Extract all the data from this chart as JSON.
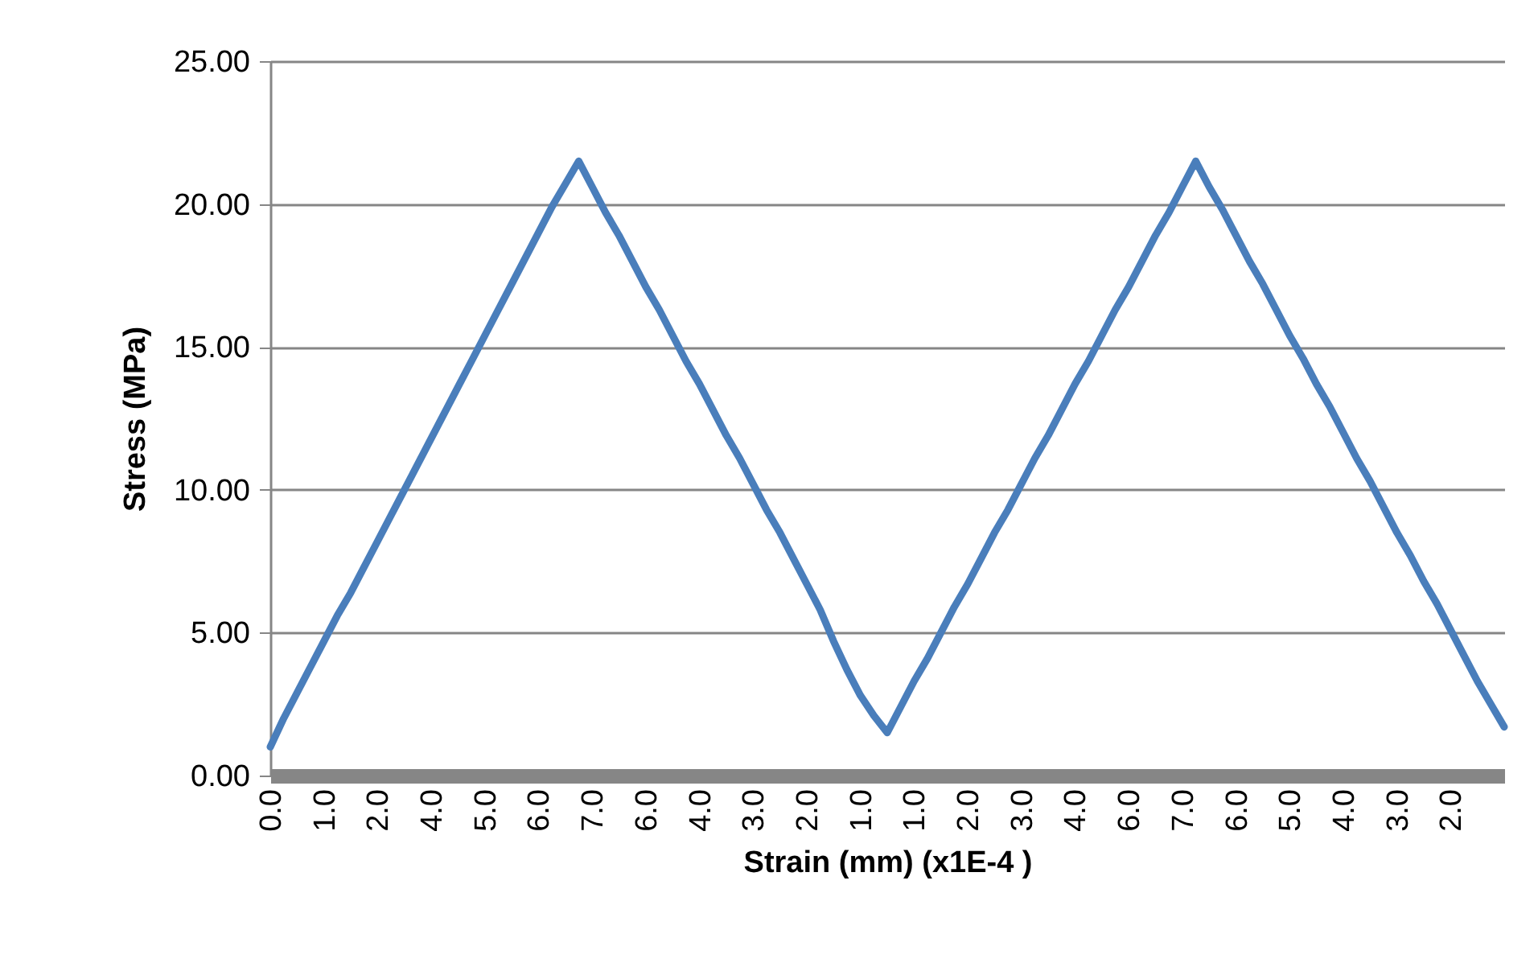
{
  "chart_data": {
    "type": "line",
    "xlabel": "Strain (mm) (x1E-4 )",
    "ylabel": "Stress (MPa)",
    "categories": [
      "0.0",
      null,
      null,
      null,
      "1.0",
      null,
      null,
      null,
      "2.0",
      null,
      null,
      null,
      "4.0",
      null,
      null,
      null,
      "5.0",
      null,
      null,
      null,
      "6.0",
      null,
      null,
      null,
      "7.0",
      null,
      null,
      null,
      "6.0",
      null,
      null,
      null,
      "4.0",
      null,
      null,
      null,
      "3.0",
      null,
      null,
      null,
      "2.0",
      null,
      null,
      null,
      "1.0",
      null,
      null,
      null,
      "1.0",
      null,
      null,
      null,
      "2.0",
      null,
      null,
      null,
      "3.0",
      null,
      null,
      null,
      "4.0",
      null,
      null,
      null,
      "6.0",
      null,
      null,
      null,
      "7.0",
      null,
      null,
      null,
      "6.0",
      null,
      null,
      null,
      "5.0",
      null,
      null,
      null,
      "4.0",
      null,
      null,
      null,
      "3.0",
      null,
      null,
      null,
      "2.0",
      null,
      null,
      null,
      null
    ],
    "series": [
      {
        "color": "#4a7ebb",
        "values": [
          1.0,
          2.0,
          2.9,
          3.8,
          4.7,
          5.6,
          6.4,
          7.3,
          8.2,
          9.1,
          10.0,
          10.9,
          11.8,
          12.7,
          13.6,
          14.5,
          15.4,
          16.3,
          17.2,
          18.1,
          19.0,
          19.9,
          20.7,
          21.5,
          20.6,
          19.7,
          18.9,
          18.0,
          17.1,
          16.3,
          15.4,
          14.5,
          13.7,
          12.8,
          11.9,
          11.1,
          10.2,
          9.3,
          8.5,
          7.6,
          6.7,
          5.8,
          4.7,
          3.7,
          2.8,
          2.1,
          1.5,
          2.4,
          3.3,
          4.1,
          5.0,
          5.9,
          6.7,
          7.6,
          8.5,
          9.3,
          10.2,
          11.1,
          11.9,
          12.8,
          13.7,
          14.5,
          15.4,
          16.3,
          17.1,
          18.0,
          18.9,
          19.7,
          20.6,
          21.5,
          20.6,
          19.8,
          18.9,
          18.0,
          17.2,
          16.3,
          15.4,
          14.6,
          13.7,
          12.9,
          12.0,
          11.1,
          10.3,
          9.4,
          8.5,
          7.7,
          6.8,
          6.0,
          5.1,
          4.2,
          3.3,
          2.5,
          1.7
        ]
      }
    ],
    "ylim": [
      0,
      25
    ],
    "yticks": [
      {
        "value": 0,
        "label": "0.00"
      },
      {
        "value": 5,
        "label": "5.00"
      },
      {
        "value": 10,
        "label": "10.00"
      },
      {
        "value": 15,
        "label": "15.00"
      },
      {
        "value": 20,
        "label": "20.00"
      },
      {
        "value": 25,
        "label": "25.00"
      }
    ],
    "grid": "y",
    "legend": false,
    "marker": "none",
    "line_style": "solid"
  }
}
